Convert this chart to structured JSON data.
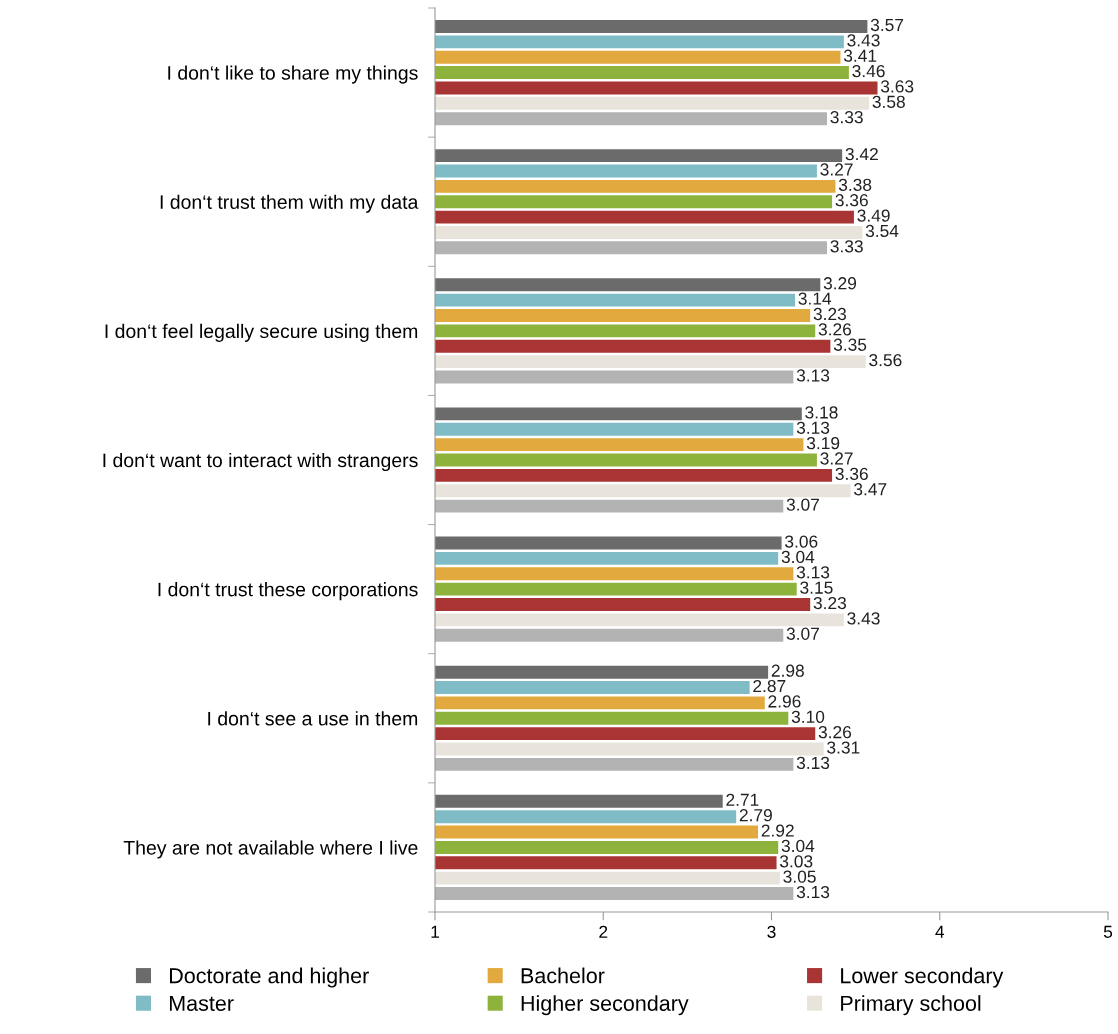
{
  "chart_data": {
    "type": "bar",
    "orientation": "horizontal",
    "categories": [
      "I don‘t like to share my things",
      "I don‘t trust them with my data",
      "I don‘t feel legally secure using them",
      "I don‘t want to interact with strangers",
      "I don‘t trust these corporations",
      "I don‘t see a use in them",
      "They are not available where I live"
    ],
    "series": [
      {
        "name": "Doctorate and higher",
        "color": "#6b6b6b",
        "values": [
          3.57,
          3.42,
          3.29,
          3.18,
          3.06,
          2.98,
          2.71
        ],
        "value_labels": [
          "3.57",
          "3.42",
          "3.29",
          "3.18",
          "3.06",
          "2.98",
          "2.71"
        ]
      },
      {
        "name": "Master",
        "color": "#7fbcc6",
        "values": [
          3.43,
          3.27,
          3.14,
          3.13,
          3.04,
          2.87,
          2.79
        ],
        "value_labels": [
          "3.43",
          "3.27",
          "3.14",
          "3.13",
          "3.04",
          "2.87",
          "2.79"
        ]
      },
      {
        "name": "Bachelor",
        "color": "#e2a93f",
        "values": [
          3.41,
          3.38,
          3.23,
          3.19,
          3.13,
          2.96,
          2.92
        ],
        "value_labels": [
          "3.41",
          "3.38",
          "3.23",
          "3.19",
          "3.13",
          "2.96",
          "2.92"
        ]
      },
      {
        "name": "Higher secondary",
        "color": "#8db33c",
        "values": [
          3.46,
          3.36,
          3.26,
          3.27,
          3.15,
          3.1,
          3.04
        ],
        "value_labels": [
          "3.46",
          "3.36",
          "3.26",
          "3.27",
          "3.15",
          "3.10",
          "3.04"
        ]
      },
      {
        "name": "Lower secondary",
        "color": "#a83433",
        "values": [
          3.63,
          3.49,
          3.35,
          3.36,
          3.23,
          3.26,
          3.03
        ],
        "value_labels": [
          "3.63",
          "3.49",
          "3.35",
          "3.36",
          "3.23",
          "3.26",
          "3.03"
        ]
      },
      {
        "name": "Primary school",
        "color": "#e8e4dc",
        "values": [
          3.58,
          3.54,
          3.56,
          3.47,
          3.43,
          3.31,
          3.05
        ],
        "value_labels": [
          "3.58",
          "3.54",
          "3.56",
          "3.47",
          "3.43",
          "3.31",
          "3.05"
        ]
      },
      {
        "color": "#b3b3b3",
        "values": [
          3.33,
          3.33,
          3.13,
          3.07,
          3.07,
          3.13,
          3.13
        ],
        "value_labels": [
          "3.33",
          "3.33",
          "3.13",
          "3.07",
          "3.07",
          "3.13",
          "3.13"
        ]
      }
    ],
    "xlim": [
      1,
      5
    ],
    "xticks": [
      1,
      2,
      3,
      4,
      5
    ],
    "grid": false,
    "legend": "bottom"
  }
}
